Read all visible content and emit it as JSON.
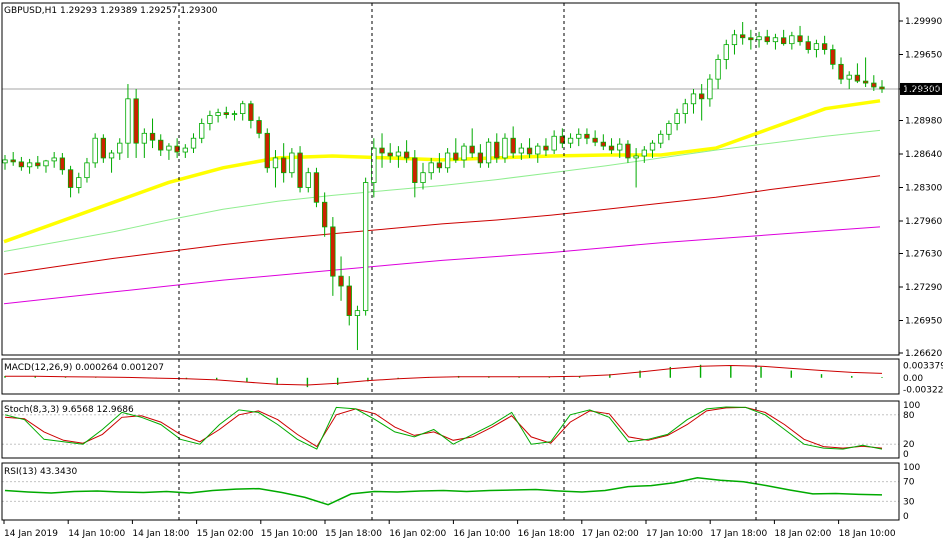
{
  "header": {
    "symbol": "GBPUSD,H1",
    "open": "1.29293",
    "high": "1.29389",
    "low": "1.29257",
    "close": "1.29300"
  },
  "colors": {
    "background": "#ffffff",
    "grid": "#000000",
    "bull_body": "#00aa00",
    "bear_body": "#cc2200",
    "wick": "#00aa00",
    "ma_yellow": "#ffff00",
    "ma_lightgreen": "#90ee90",
    "ma_red": "#cc0000",
    "ma_magenta": "#dd00dd",
    "macd_hist": "#00aa00",
    "macd_signal": "#cc0000",
    "stoch_main": "#00aa00",
    "stoch_signal": "#cc0000",
    "rsi_line": "#00aa00",
    "price_label_bg": "#000000",
    "price_label_text": "#ffffff"
  },
  "chart_data": [
    {
      "type": "candlestick",
      "symbol": "GBPUSD",
      "timeframe": "H1",
      "ylim": [
        1.2662,
        1.2999
      ],
      "price_ticks": [
        "1.29990",
        "1.29650",
        "1.29300",
        "1.28980",
        "1.28640",
        "1.28300",
        "1.27960",
        "1.27630",
        "1.27290",
        "1.26950",
        "1.26620"
      ],
      "current_price": "1.29300",
      "x_labels": [
        "14 Jan 2019",
        "14 Jan 10:00",
        "14 Jan 18:00",
        "15 Jan 02:00",
        "15 Jan 10:00",
        "15 Jan 18:00",
        "16 Jan 02:00",
        "16 Jan 10:00",
        "16 Jan 18:00",
        "17 Jan 02:00",
        "17 Jan 10:00",
        "17 Jan 18:00",
        "18 Jan 02:00",
        "18 Jan 10:00"
      ],
      "candles": [
        [
          1.2855,
          1.2863,
          1.2848,
          1.2858
        ],
        [
          1.2858,
          1.2866,
          1.2852,
          1.2856
        ],
        [
          1.2856,
          1.2861,
          1.2847,
          1.2851
        ],
        [
          1.2851,
          1.2859,
          1.2844,
          1.2855
        ],
        [
          1.2855,
          1.2862,
          1.2849,
          1.2852
        ],
        [
          1.2852,
          1.2858,
          1.2845,
          1.2857
        ],
        [
          1.2857,
          1.2866,
          1.285,
          1.286
        ],
        [
          1.286,
          1.2865,
          1.2843,
          1.2848
        ],
        [
          1.2848,
          1.2852,
          1.282,
          1.283
        ],
        [
          1.283,
          1.2845,
          1.2824,
          1.284
        ],
        [
          1.284,
          1.286,
          1.2835,
          1.2855
        ],
        [
          1.2855,
          1.2885,
          1.285,
          1.288
        ],
        [
          1.288,
          1.2884,
          1.2855,
          1.286
        ],
        [
          1.286,
          1.2868,
          1.2845,
          1.2865
        ],
        [
          1.2865,
          1.288,
          1.2858,
          1.2875
        ],
        [
          1.2875,
          1.2935,
          1.286,
          1.292
        ],
        [
          1.292,
          1.293,
          1.286,
          1.2875
        ],
        [
          1.2875,
          1.289,
          1.286,
          1.2885
        ],
        [
          1.2885,
          1.29,
          1.287,
          1.2878
        ],
        [
          1.2878,
          1.2884,
          1.2862,
          1.2868
        ],
        [
          1.2868,
          1.2875,
          1.2858,
          1.2872
        ],
        [
          1.2872,
          1.288,
          1.286,
          1.2866
        ],
        [
          1.2866,
          1.2874,
          1.286,
          1.287
        ],
        [
          1.287,
          1.2885,
          1.2865,
          1.288
        ],
        [
          1.288,
          1.29,
          1.2875,
          1.2895
        ],
        [
          1.2895,
          1.2908,
          1.2888,
          1.2903
        ],
        [
          1.2903,
          1.291,
          1.2896,
          1.2906
        ],
        [
          1.2906,
          1.2912,
          1.29,
          1.2904
        ],
        [
          1.2904,
          1.2908,
          1.2898,
          1.2905
        ],
        [
          1.2905,
          1.2918,
          1.2898,
          1.2915
        ],
        [
          1.2915,
          1.2918,
          1.289,
          1.2898
        ],
        [
          1.2898,
          1.2902,
          1.288,
          1.2885
        ],
        [
          1.2885,
          1.289,
          1.2845,
          1.285
        ],
        [
          1.285,
          1.2868,
          1.283,
          1.286
        ],
        [
          1.286,
          1.2875,
          1.2835,
          1.2845
        ],
        [
          1.2845,
          1.287,
          1.284,
          1.2865
        ],
        [
          1.2865,
          1.2872,
          1.2825,
          1.283
        ],
        [
          1.283,
          1.285,
          1.2825,
          1.2845
        ],
        [
          1.2845,
          1.285,
          1.281,
          1.2815
        ],
        [
          1.2815,
          1.2825,
          1.278,
          1.279
        ],
        [
          1.279,
          1.28,
          1.272,
          1.274
        ],
        [
          1.274,
          1.276,
          1.2715,
          1.273
        ],
        [
          1.273,
          1.274,
          1.269,
          1.27
        ],
        [
          1.27,
          1.271,
          1.2665,
          1.2705
        ],
        [
          1.2705,
          1.284,
          1.27,
          1.2835
        ],
        [
          1.2835,
          1.288,
          1.282,
          1.287
        ],
        [
          1.287,
          1.2885,
          1.285,
          1.2865
        ],
        [
          1.2865,
          1.2875,
          1.2855,
          1.2862
        ],
        [
          1.2862,
          1.2872,
          1.285,
          1.2866
        ],
        [
          1.2866,
          1.2878,
          1.2855,
          1.286
        ],
        [
          1.286,
          1.2868,
          1.282,
          1.2835
        ],
        [
          1.2835,
          1.2855,
          1.2828,
          1.2845
        ],
        [
          1.2845,
          1.286,
          1.2838,
          1.2855
        ],
        [
          1.2855,
          1.2865,
          1.2845,
          1.285
        ],
        [
          1.285,
          1.287,
          1.2845,
          1.2865
        ],
        [
          1.2865,
          1.288,
          1.2855,
          1.2858
        ],
        [
          1.2858,
          1.2875,
          1.285,
          1.2872
        ],
        [
          1.2872,
          1.289,
          1.286,
          1.2865
        ],
        [
          1.2865,
          1.2874,
          1.285,
          1.2855
        ],
        [
          1.2855,
          1.288,
          1.285,
          1.2876
        ],
        [
          1.2876,
          1.2885,
          1.2855,
          1.286
        ],
        [
          1.286,
          1.2885,
          1.2855,
          1.288
        ],
        [
          1.288,
          1.2892,
          1.286,
          1.2865
        ],
        [
          1.2865,
          1.2875,
          1.2858,
          1.287
        ],
        [
          1.287,
          1.288,
          1.286,
          1.2864
        ],
        [
          1.2864,
          1.2875,
          1.2855,
          1.2872
        ],
        [
          1.2872,
          1.288,
          1.2862,
          1.2868
        ],
        [
          1.2868,
          1.2888,
          1.2864,
          1.2882
        ],
        [
          1.2882,
          1.289,
          1.287,
          1.2875
        ],
        [
          1.2875,
          1.2885,
          1.287,
          1.288
        ],
        [
          1.288,
          1.289,
          1.2872,
          1.2884
        ],
        [
          1.2884,
          1.289,
          1.2874,
          1.288
        ],
        [
          1.288,
          1.2888,
          1.2872,
          1.2876
        ],
        [
          1.2876,
          1.2884,
          1.2868,
          1.2872
        ],
        [
          1.2872,
          1.288,
          1.2864,
          1.2868
        ],
        [
          1.2868,
          1.288,
          1.286,
          1.2874
        ],
        [
          1.2874,
          1.2878,
          1.2855,
          1.286
        ],
        [
          1.286,
          1.287,
          1.283,
          1.2862
        ],
        [
          1.2862,
          1.2872,
          1.2855,
          1.2868
        ],
        [
          1.2868,
          1.2878,
          1.286,
          1.2875
        ],
        [
          1.2875,
          1.2888,
          1.287,
          1.2884
        ],
        [
          1.2884,
          1.2898,
          1.2878,
          1.2895
        ],
        [
          1.2895,
          1.291,
          1.2888,
          1.2905
        ],
        [
          1.2905,
          1.292,
          1.2895,
          1.2915
        ],
        [
          1.2915,
          1.293,
          1.2905,
          1.2925
        ],
        [
          1.2925,
          1.2935,
          1.2898,
          1.292
        ],
        [
          1.292,
          1.2945,
          1.2912,
          1.294
        ],
        [
          1.294,
          1.2965,
          1.293,
          1.296
        ],
        [
          1.296,
          1.298,
          1.295,
          1.2975
        ],
        [
          1.2975,
          1.299,
          1.2965,
          1.2985
        ],
        [
          1.2985,
          1.2998,
          1.2975,
          1.2982
        ],
        [
          1.2982,
          1.299,
          1.297,
          1.298
        ],
        [
          1.298,
          1.2988,
          1.2972,
          1.2983
        ],
        [
          1.2983,
          1.299,
          1.2975,
          1.2978
        ],
        [
          1.2978,
          1.2986,
          1.297,
          1.2982
        ],
        [
          1.2982,
          1.299,
          1.2974,
          1.2976
        ],
        [
          1.2976,
          1.2988,
          1.297,
          1.2984
        ],
        [
          1.2984,
          1.2994,
          1.2974,
          1.2978
        ],
        [
          1.2978,
          1.2984,
          1.2966,
          1.297
        ],
        [
          1.297,
          1.298,
          1.2962,
          1.2976
        ],
        [
          1.2976,
          1.2984,
          1.2965,
          1.297
        ],
        [
          1.297,
          1.2975,
          1.295,
          1.2955
        ],
        [
          1.2955,
          1.2962,
          1.2935,
          1.294
        ],
        [
          1.294,
          1.2948,
          1.293,
          1.2944
        ],
        [
          1.2944,
          1.2956,
          1.2936,
          1.2938
        ],
        [
          1.2938,
          1.2962,
          1.2932,
          1.2936
        ],
        [
          1.2936,
          1.2944,
          1.2928,
          1.2932
        ],
        [
          1.2932,
          1.2939,
          1.2926,
          1.293
        ]
      ],
      "moving_averages": [
        {
          "color": "yellow",
          "values": [
            1.2775,
            1.2795,
            1.2815,
            1.2835,
            1.285,
            1.286,
            1.2862,
            1.286,
            1.2858,
            1.286,
            1.2862,
            1.2863,
            1.2863,
            1.287,
            1.289,
            1.291,
            1.2918
          ]
        },
        {
          "color": "lightgreen",
          "values": [
            1.2765,
            1.2775,
            1.2785,
            1.2797,
            1.2808,
            1.2816,
            1.2822,
            1.2827,
            1.2832,
            1.2838,
            1.2845,
            1.2852,
            1.286,
            1.2868,
            1.2875,
            1.2882,
            1.2888
          ]
        },
        {
          "color": "red",
          "values": [
            1.2742,
            1.275,
            1.2758,
            1.2765,
            1.2772,
            1.2778,
            1.2783,
            1.2788,
            1.2793,
            1.2797,
            1.2802,
            1.2808,
            1.2814,
            1.282,
            1.2828,
            1.2835,
            1.2842
          ]
        },
        {
          "color": "magenta",
          "values": [
            1.2712,
            1.2718,
            1.2724,
            1.273,
            1.2736,
            1.2741,
            1.2746,
            1.2751,
            1.2756,
            1.276,
            1.2764,
            1.2769,
            1.2774,
            1.2778,
            1.2782,
            1.2786,
            1.279
          ]
        }
      ]
    },
    {
      "type": "macd",
      "label": "MACD(12,26,9) 0.000264 0.001207",
      "ticks": [
        "0.003379",
        "0.00",
        "-0.003228"
      ],
      "ylim": [
        -0.0045,
        0.0052
      ],
      "histogram": [
        0.0005,
        0.0004,
        0.0003,
        0.0002,
        0.0,
        -0.0002,
        -0.0004,
        -0.0006,
        -0.0012,
        -0.002,
        -0.0026,
        -0.002,
        -0.001,
        -0.0003,
        0.0002,
        0.0005,
        0.0004,
        0.0003,
        0.0003,
        0.0004,
        0.001,
        0.002,
        0.003,
        0.0036,
        0.0034,
        0.003,
        0.002,
        0.001,
        0.0005,
        0.0002
      ],
      "signal": [
        0.0004,
        0.0004,
        0.0003,
        0.0002,
        0.0001,
        -0.0001,
        -0.0003,
        -0.0006,
        -0.0012,
        -0.0018,
        -0.002,
        -0.0015,
        -0.0008,
        -0.0003,
        0.0001,
        0.0003,
        0.0003,
        0.0003,
        0.0003,
        0.0004,
        0.0008,
        0.0016,
        0.0025,
        0.0032,
        0.0034,
        0.0032,
        0.0026,
        0.002,
        0.0015,
        0.0012
      ]
    },
    {
      "type": "stochastic",
      "label": "Stoch(8,3,3) 9.6568 12.9686",
      "ticks": [
        "100",
        "80",
        "20",
        "0"
      ],
      "ylim": [
        0,
        100
      ],
      "main": [
        80,
        70,
        30,
        25,
        20,
        50,
        85,
        75,
        60,
        30,
        20,
        60,
        90,
        85,
        60,
        30,
        10,
        95,
        92,
        70,
        45,
        35,
        50,
        20,
        40,
        60,
        85,
        20,
        25,
        80,
        90,
        75,
        25,
        30,
        40,
        70,
        92,
        96,
        95,
        80,
        50,
        20,
        12,
        10,
        18,
        10
      ],
      "signal": [
        75,
        72,
        45,
        28,
        22,
        40,
        75,
        78,
        65,
        40,
        25,
        50,
        80,
        88,
        70,
        40,
        15,
        80,
        92,
        82,
        55,
        38,
        45,
        28,
        35,
        55,
        78,
        35,
        22,
        65,
        88,
        82,
        35,
        28,
        38,
        60,
        88,
        94,
        95,
        85,
        60,
        30,
        15,
        12,
        16,
        12
      ]
    },
    {
      "type": "rsi",
      "label": "RSI(13) 43.3430",
      "ticks": [
        "100",
        "70",
        "30",
        "0"
      ],
      "ylim": [
        0,
        100
      ],
      "values": [
        52,
        49,
        47,
        50,
        51,
        49,
        48,
        50,
        47,
        52,
        55,
        56,
        48,
        38,
        23,
        45,
        50,
        49,
        51,
        52,
        50,
        52,
        53,
        54,
        51,
        49,
        52,
        60,
        62,
        68,
        78,
        73,
        70,
        62,
        53,
        45,
        46,
        44,
        43
      ]
    }
  ]
}
